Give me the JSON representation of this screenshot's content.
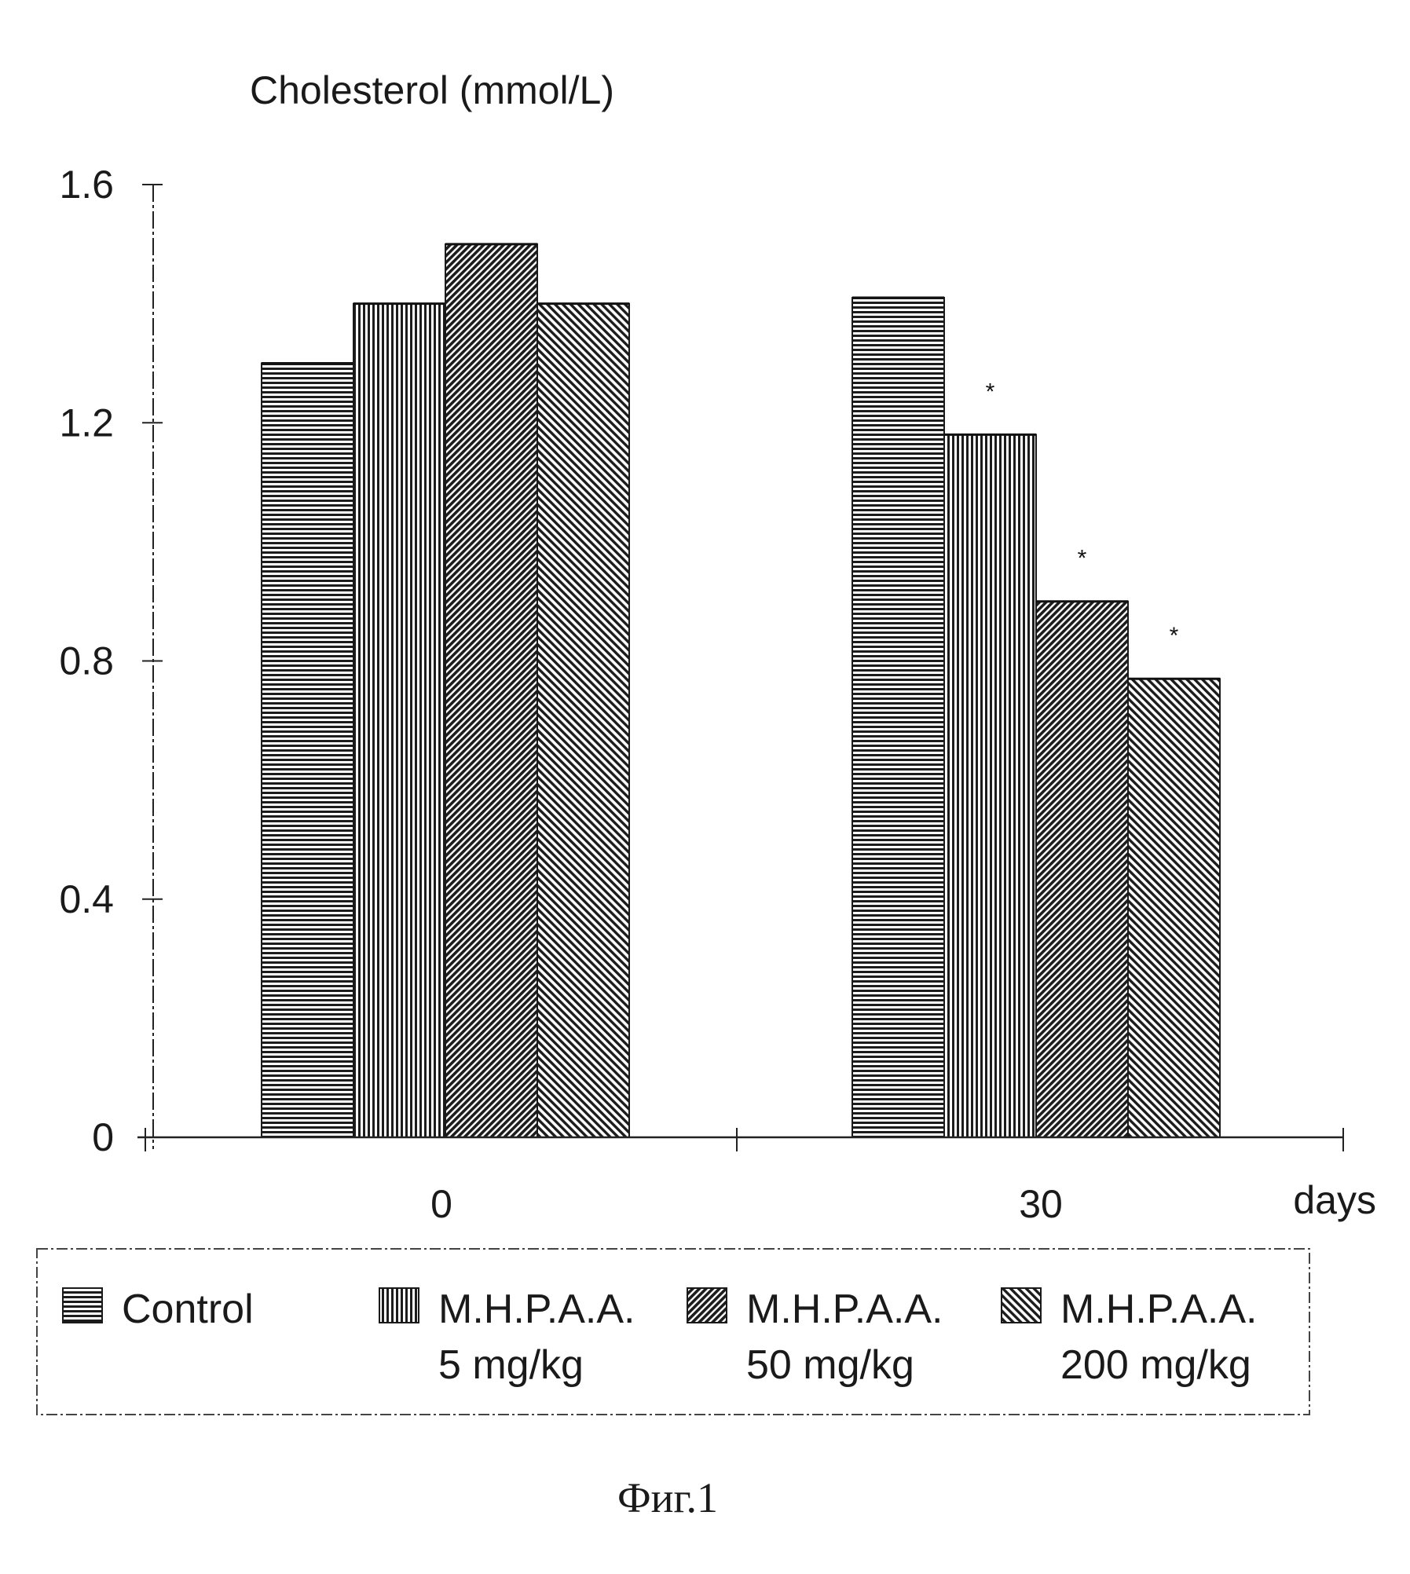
{
  "chart_data": {
    "type": "bar",
    "ylabel": "Cholesterol (mmol/L)",
    "xlabel": "days",
    "categories": [
      "0",
      "30"
    ],
    "ylim": [
      0,
      1.6
    ],
    "yticks": [
      "0",
      "0.4",
      "0.8",
      "1.2",
      "1.6"
    ],
    "grid": false,
    "legend_placement": "bottom",
    "series": [
      {
        "name": "Control",
        "values": [
          1.3,
          1.41
        ],
        "pattern": "horizontal",
        "significance": [
          "",
          ""
        ]
      },
      {
        "name": "M.H.P.A.A.",
        "name_line2": "5 mg/kg",
        "values": [
          1.4,
          1.18
        ],
        "pattern": "vertical",
        "significance": [
          "",
          "*"
        ]
      },
      {
        "name": "M.H.P.A.A.",
        "name_line2": "50 mg/kg",
        "values": [
          1.5,
          0.9
        ],
        "pattern": "diagonal-dense",
        "significance": [
          "",
          "*"
        ]
      },
      {
        "name": "M.H.P.A.A.",
        "name_line2": "200 mg/kg",
        "values": [
          1.4,
          0.77
        ],
        "pattern": "diagonal",
        "significance": [
          "",
          "*"
        ]
      }
    ]
  },
  "caption": "Фиг.1"
}
